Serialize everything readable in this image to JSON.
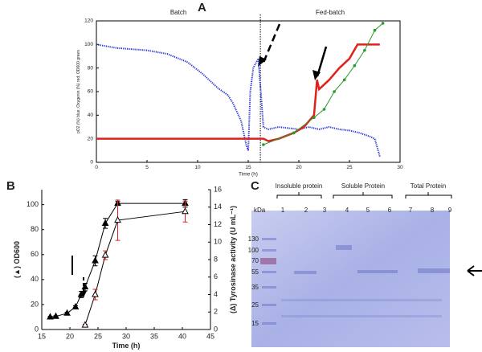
{
  "chart_data": [
    {
      "type": "line",
      "panel": "A",
      "annotations": [
        "Batch",
        "Fed-batch"
      ],
      "xlabel": "Time (h)",
      "ylabel": "pO2 (%) blue; Oxygenin (%) red; OD600 green",
      "xlim": [
        0,
        30
      ],
      "xticks": [
        0,
        5,
        10,
        15,
        20,
        25,
        30
      ],
      "ylim": [
        0,
        120
      ],
      "yticks": [
        0,
        20,
        40,
        60,
        80,
        100,
        120
      ],
      "phase_boundary": 16.2,
      "series": [
        {
          "color": "#1f2fd6",
          "dotted": true,
          "x": [
            0,
            2,
            5,
            7,
            9,
            10.5,
            12,
            13,
            13.5,
            14.3,
            14.8,
            15,
            15.2,
            15.5,
            15.8,
            16,
            16.5,
            17,
            18,
            19,
            20,
            21,
            22,
            23,
            24,
            25,
            26,
            27,
            27.5,
            28
          ],
          "values": [
            100,
            97,
            95,
            92,
            85,
            75,
            63,
            57,
            50,
            35,
            15,
            10,
            60,
            80,
            85,
            88,
            30,
            28,
            30,
            29,
            28,
            30,
            28,
            30,
            28,
            27,
            25,
            22,
            20,
            5
          ]
        },
        {
          "color": "#e0201b",
          "width": 2.5,
          "x": [
            0,
            16.5,
            17,
            18,
            19.5,
            20.5,
            21.5,
            21.8,
            22,
            23,
            24,
            25,
            25.8,
            28
          ],
          "values": [
            20,
            20,
            18,
            20,
            25,
            30,
            40,
            70,
            62,
            70,
            80,
            88,
            100,
            100
          ]
        },
        {
          "color": "#2a9a2a",
          "markers": "circle",
          "x": [
            16.5,
            19.5,
            21.5,
            22.5,
            23.5,
            24.5,
            25.5,
            26.5,
            27.5,
            28.3
          ],
          "values": [
            15,
            25,
            38,
            45,
            60,
            70,
            82,
            95,
            112,
            118
          ]
        }
      ]
    },
    {
      "type": "line",
      "panel": "B",
      "xlabel": "Time (h)",
      "ylabel": "(▲) OD600",
      "y2label": "(Δ) Tyrosinase activity (U mL⁻¹)",
      "xlim": [
        15,
        45
      ],
      "xticks": [
        15,
        20,
        25,
        30,
        35,
        40,
        45
      ],
      "ylim": [
        0,
        112
      ],
      "yticks": [
        0,
        20,
        40,
        60,
        80,
        100
      ],
      "y2lim": [
        0,
        16
      ],
      "y2ticks": [
        0,
        2,
        4,
        6,
        8,
        10,
        12,
        14,
        16
      ],
      "series": [
        {
          "color": "#000000",
          "markers": "triangle-filled",
          "x": [
            16.5,
            17.5,
            19.5,
            21,
            22,
            22.7,
            24.5,
            26.3,
            28.5,
            40.5
          ],
          "values": [
            10,
            10.5,
            13,
            18,
            28,
            34,
            55,
            85,
            101,
            101
          ],
          "errors": [
            0.5,
            0.5,
            0.8,
            1,
            2.5,
            3,
            4,
            4,
            1.5,
            3
          ]
        },
        {
          "color": "#000000",
          "markers": "triangle-open",
          "axis": "y2",
          "error_color": "#e0201b",
          "x": [
            22.7,
            24.5,
            26.3,
            28.5,
            40.5
          ],
          "values": [
            0.5,
            4,
            8.5,
            12.5,
            13.5
          ],
          "errors": [
            0.1,
            0.6,
            0.5,
            2.3,
            1.2
          ]
        }
      ]
    }
  ],
  "gel": {
    "panel": "C",
    "unit": "kDa",
    "groups": [
      "Insoluble protein",
      "Soluble Protein",
      "Total Protein"
    ],
    "lanes": [
      "1",
      "2",
      "3",
      "4",
      "5",
      "6",
      "7",
      "8",
      "9"
    ],
    "markers": [
      "130",
      "100",
      "70",
      "55",
      "35",
      "25",
      "15"
    ]
  }
}
